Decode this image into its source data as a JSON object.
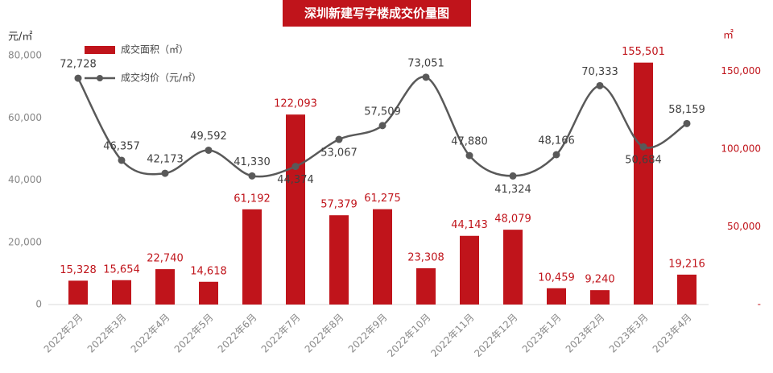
{
  "chart_data": {
    "type": "bar-line",
    "title": "深圳新建写字楼成交价量图",
    "y_label": "元/㎡",
    "y2_label": "㎡",
    "categories": [
      "2022年2月",
      "2022年3月",
      "2022年4月",
      "2022年5月",
      "2022年6月",
      "2022年7月",
      "2022年8月",
      "2022年9月",
      "2022年10月",
      "2022年11月",
      "2022年12月",
      "2023年1月",
      "2023年2月",
      "2023年3月",
      "2023年4月"
    ],
    "series": [
      {
        "name": "成交面积（㎡）",
        "type": "bar",
        "axis": "y2",
        "color": "#c0141b",
        "values": [
          15328,
          15654,
          22740,
          14618,
          61192,
          122093,
          57379,
          61275,
          23308,
          44143,
          48079,
          10459,
          9240,
          155501,
          19216
        ],
        "value_labels": [
          "15,328",
          "15,654",
          "22,740",
          "14,618",
          "61,192",
          "122,093",
          "57,379",
          "61,275",
          "23,308",
          "44,143",
          "48,079",
          "10,459",
          "9,240",
          "155,501",
          "19,216"
        ]
      },
      {
        "name": "成交均价（元/㎡）",
        "type": "line",
        "axis": "y",
        "color": "#595959",
        "values": [
          72728,
          46357,
          42173,
          49592,
          41330,
          44374,
          53067,
          57509,
          73051,
          47880,
          41324,
          48166,
          70333,
          50684,
          58159
        ],
        "value_labels": [
          "72,728",
          "46,357",
          "42,173",
          "49,592",
          "41,330",
          "44,374",
          "53,067",
          "57,509",
          "73,051",
          "47,880",
          "41,324",
          "48,166",
          "70,333",
          "50,684",
          "58,159"
        ]
      }
    ],
    "ylim": [
      0,
      80000
    ],
    "yticks": [
      0,
      {
        "value": 20000,
        "label": "20,000"
      },
      {
        "value": 40000,
        "label": "40,000"
      },
      {
        "value": 60000,
        "label": "60,000"
      },
      {
        "value": 80000,
        "label": "80,000"
      }
    ],
    "y2lim": [
      0,
      160000
    ],
    "y2ticks": [
      {
        "value": 0,
        "label": "-"
      },
      {
        "value": 50000,
        "label": "50,000"
      },
      {
        "value": 100000,
        "label": "100,000"
      },
      {
        "value": 150000,
        "label": "150,000"
      }
    ]
  }
}
